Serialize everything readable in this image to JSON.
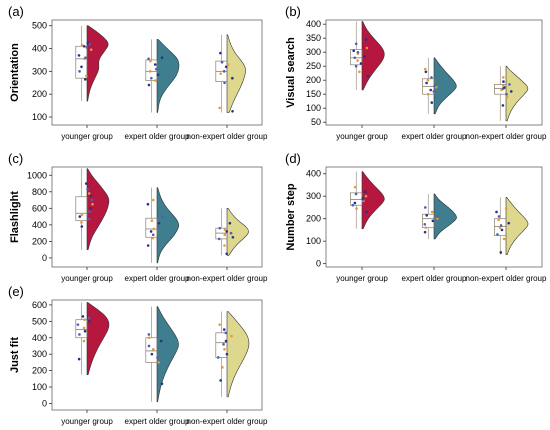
{
  "figure": {
    "background": "#ffffff"
  },
  "colors": {
    "younger group": "#b5173e",
    "expert older group": "#3f7e8e",
    "non-expert older group": "#ddd88e",
    "box_stroke": "#8a7e6e",
    "point_colors": [
      "#2a2f8a",
      "#e39a3b",
      "#4d5fb5"
    ]
  },
  "chart_data": [
    {
      "type": "box-violin",
      "panel_label": "(a)",
      "title": "",
      "xlabel": "",
      "ylabel": "Orientation",
      "categories": [
        "younger group",
        "expert older group",
        "non-expert older group"
      ],
      "yticks": [
        100,
        200,
        300,
        400,
        500
      ],
      "ylim": [
        65,
        525
      ],
      "groups": [
        {
          "name": "younger group",
          "q1": 270,
          "median": 355,
          "q3": 410,
          "whisker_low": 170,
          "whisker_high": 500,
          "density": [
            [
              170,
              0.03
            ],
            [
              220,
              0.12
            ],
            [
              270,
              0.35
            ],
            [
              310,
              0.55
            ],
            [
              350,
              0.5
            ],
            [
              390,
              0.8
            ],
            [
              420,
              1.0
            ],
            [
              450,
              0.75
            ],
            [
              480,
              0.35
            ],
            [
              500,
              0.05
            ]
          ],
          "points": [
            265,
            280,
            300,
            320,
            355,
            360,
            370,
            395,
            405,
            410,
            415,
            420,
            425
          ]
        },
        {
          "name": "expert older group",
          "q1": 260,
          "median": 300,
          "q3": 350,
          "whisker_low": 120,
          "whisker_high": 440,
          "density": [
            [
              120,
              0.03
            ],
            [
              180,
              0.12
            ],
            [
              230,
              0.45
            ],
            [
              270,
              0.8
            ],
            [
              300,
              0.95
            ],
            [
              330,
              1.0
            ],
            [
              360,
              0.9
            ],
            [
              400,
              0.45
            ],
            [
              440,
              0.05
            ]
          ],
          "points": [
            240,
            260,
            270,
            285,
            300,
            310,
            330,
            345,
            355,
            360
          ]
        },
        {
          "name": "non-expert older group",
          "q1": 255,
          "median": 300,
          "q3": 345,
          "whisker_low": 120,
          "whisker_high": 460,
          "density": [
            [
              120,
              0.1
            ],
            [
              160,
              0.25
            ],
            [
              200,
              0.45
            ],
            [
              240,
              0.65
            ],
            [
              280,
              0.8
            ],
            [
              310,
              0.85
            ],
            [
              340,
              0.7
            ],
            [
              380,
              0.35
            ],
            [
              420,
              0.15
            ],
            [
              460,
              0.03
            ]
          ],
          "points": [
            125,
            140,
            250,
            270,
            290,
            300,
            320,
            330,
            340,
            380
          ]
        }
      ]
    },
    {
      "type": "box-violin",
      "panel_label": "(b)",
      "title": "",
      "xlabel": "",
      "ylabel": "Visual search",
      "categories": [
        "younger group",
        "expert older group",
        "non-expert older group"
      ],
      "yticks": [
        50,
        100,
        150,
        200,
        250,
        300,
        350,
        400
      ],
      "ylim": [
        40,
        415
      ],
      "groups": [
        {
          "name": "younger group",
          "q1": 255,
          "median": 280,
          "q3": 310,
          "whisker_low": 165,
          "whisker_high": 410,
          "density": [
            [
              165,
              0.05
            ],
            [
              200,
              0.25
            ],
            [
              240,
              0.6
            ],
            [
              270,
              0.9
            ],
            [
              295,
              1.0
            ],
            [
              320,
              0.85
            ],
            [
              350,
              0.5
            ],
            [
              380,
              0.2
            ],
            [
              410,
              0.03
            ]
          ],
          "points": [
            215,
            230,
            250,
            260,
            270,
            280,
            285,
            295,
            300,
            305,
            315,
            330,
            345
          ]
        },
        {
          "name": "expert older group",
          "q1": 150,
          "median": 178,
          "q3": 205,
          "whisker_low": 80,
          "whisker_high": 280,
          "density": [
            [
              80,
              0.05
            ],
            [
              110,
              0.2
            ],
            [
              140,
              0.55
            ],
            [
              165,
              0.9
            ],
            [
              180,
              1.0
            ],
            [
              200,
              0.85
            ],
            [
              230,
              0.5
            ],
            [
              260,
              0.2
            ],
            [
              280,
              0.03
            ]
          ],
          "points": [
            120,
            150,
            160,
            165,
            175,
            180,
            190,
            200,
            210,
            230,
            240
          ]
        },
        {
          "name": "non-expert older group",
          "q1": 150,
          "median": 170,
          "q3": 185,
          "whisker_low": 55,
          "whisker_high": 250,
          "density": [
            [
              55,
              0.05
            ],
            [
              90,
              0.2
            ],
            [
              120,
              0.45
            ],
            [
              150,
              0.8
            ],
            [
              170,
              1.0
            ],
            [
              190,
              0.8
            ],
            [
              215,
              0.45
            ],
            [
              240,
              0.12
            ],
            [
              250,
              0.03
            ]
          ],
          "points": [
            110,
            140,
            150,
            160,
            165,
            170,
            175,
            180,
            185,
            195,
            210
          ]
        }
      ]
    },
    {
      "type": "box-violin",
      "panel_label": "(c)",
      "title": "",
      "xlabel": "",
      "ylabel": "Flashlight",
      "categories": [
        "younger group",
        "expert older group",
        "non-expert older group"
      ],
      "yticks": [
        0,
        200,
        400,
        600,
        800,
        1000
      ],
      "ylim": [
        -110,
        1100
      ],
      "groups": [
        {
          "name": "younger group",
          "q1": 450,
          "median": 540,
          "q3": 740,
          "whisker_low": 100,
          "whisker_high": 1080,
          "density": [
            [
              100,
              0.05
            ],
            [
              250,
              0.2
            ],
            [
              400,
              0.55
            ],
            [
              520,
              0.8
            ],
            [
              620,
              0.95
            ],
            [
              720,
              1.0
            ],
            [
              820,
              0.75
            ],
            [
              920,
              0.45
            ],
            [
              1000,
              0.2
            ],
            [
              1080,
              0.03
            ]
          ],
          "points": [
            380,
            430,
            470,
            500,
            520,
            560,
            600,
            650,
            700,
            750,
            780,
            830,
            900
          ]
        },
        {
          "name": "expert older group",
          "q1": 250,
          "median": 350,
          "q3": 480,
          "whisker_low": -60,
          "whisker_high": 850,
          "density": [
            [
              -60,
              0.03
            ],
            [
              50,
              0.12
            ],
            [
              150,
              0.35
            ],
            [
              250,
              0.7
            ],
            [
              330,
              0.9
            ],
            [
              400,
              1.0
            ],
            [
              480,
              0.85
            ],
            [
              580,
              0.5
            ],
            [
              700,
              0.2
            ],
            [
              850,
              0.03
            ]
          ],
          "points": [
            150,
            240,
            280,
            320,
            350,
            380,
            420,
            450,
            500,
            650,
            700
          ]
        },
        {
          "name": "non-expert older group",
          "q1": 230,
          "median": 300,
          "q3": 360,
          "whisker_low": 30,
          "whisker_high": 600,
          "density": [
            [
              30,
              0.08
            ],
            [
              100,
              0.25
            ],
            [
              180,
              0.5
            ],
            [
              260,
              0.85
            ],
            [
              320,
              1.0
            ],
            [
              380,
              0.85
            ],
            [
              450,
              0.5
            ],
            [
              520,
              0.25
            ],
            [
              600,
              0.05
            ]
          ],
          "points": [
            50,
            150,
            230,
            250,
            280,
            300,
            320,
            340,
            360,
            420
          ]
        }
      ]
    },
    {
      "type": "box-violin",
      "panel_label": "(d)",
      "title": "",
      "xlabel": "",
      "ylabel": "Number step",
      "categories": [
        "younger group",
        "expert older group",
        "non-expert older group"
      ],
      "yticks": [
        0,
        100,
        200,
        300,
        400
      ],
      "ylim": [
        -15,
        430
      ],
      "groups": [
        {
          "name": "younger group",
          "q1": 260,
          "median": 285,
          "q3": 315,
          "whisker_low": 155,
          "whisker_high": 410,
          "density": [
            [
              155,
              0.05
            ],
            [
              200,
              0.25
            ],
            [
              240,
              0.6
            ],
            [
              270,
              0.9
            ],
            [
              290,
              1.0
            ],
            [
              315,
              0.85
            ],
            [
              350,
              0.5
            ],
            [
              385,
              0.2
            ],
            [
              410,
              0.03
            ]
          ],
          "points": [
            230,
            245,
            260,
            270,
            280,
            285,
            290,
            300,
            310,
            320,
            340
          ]
        },
        {
          "name": "expert older group",
          "q1": 160,
          "median": 200,
          "q3": 220,
          "whisker_low": 110,
          "whisker_high": 310,
          "density": [
            [
              110,
              0.05
            ],
            [
              140,
              0.25
            ],
            [
              170,
              0.65
            ],
            [
              195,
              0.95
            ],
            [
              210,
              1.0
            ],
            [
              235,
              0.8
            ],
            [
              260,
              0.5
            ],
            [
              285,
              0.2
            ],
            [
              310,
              0.03
            ]
          ],
          "points": [
            140,
            160,
            175,
            190,
            200,
            210,
            215,
            230,
            250
          ]
        },
        {
          "name": "non-expert older group",
          "q1": 125,
          "median": 165,
          "q3": 200,
          "whisker_low": 40,
          "whisker_high": 295,
          "density": [
            [
              40,
              0.05
            ],
            [
              80,
              0.2
            ],
            [
              120,
              0.5
            ],
            [
              150,
              0.8
            ],
            [
              175,
              1.0
            ],
            [
              200,
              0.85
            ],
            [
              230,
              0.55
            ],
            [
              265,
              0.25
            ],
            [
              295,
              0.03
            ]
          ],
          "points": [
            50,
            110,
            130,
            150,
            160,
            170,
            180,
            195,
            210,
            230,
            245
          ]
        }
      ]
    },
    {
      "type": "box-violin",
      "panel_label": "(e)",
      "title": "",
      "xlabel": "",
      "ylabel": "Just fit",
      "categories": [
        "younger group",
        "expert older group",
        "non-expert older group"
      ],
      "yticks": [
        0,
        100,
        200,
        300,
        400,
        500,
        600
      ],
      "ylim": [
        -40,
        630
      ],
      "groups": [
        {
          "name": "younger group",
          "q1": 400,
          "median": 450,
          "q3": 510,
          "whisker_low": 175,
          "whisker_high": 615,
          "density": [
            [
              175,
              0.05
            ],
            [
              250,
              0.2
            ],
            [
              330,
              0.45
            ],
            [
              400,
              0.75
            ],
            [
              450,
              0.95
            ],
            [
              490,
              1.0
            ],
            [
              530,
              0.85
            ],
            [
              570,
              0.5
            ],
            [
              615,
              0.03
            ]
          ],
          "points": [
            270,
            380,
            420,
            440,
            460,
            480,
            500,
            510,
            520,
            530
          ]
        },
        {
          "name": "expert older group",
          "q1": 250,
          "median": 320,
          "q3": 400,
          "whisker_low": 10,
          "whisker_high": 590,
          "density": [
            [
              10,
              0.03
            ],
            [
              100,
              0.15
            ],
            [
              180,
              0.35
            ],
            [
              250,
              0.6
            ],
            [
              310,
              0.85
            ],
            [
              360,
              1.0
            ],
            [
              410,
              0.85
            ],
            [
              470,
              0.55
            ],
            [
              530,
              0.25
            ],
            [
              590,
              0.03
            ]
          ],
          "points": [
            120,
            250,
            280,
            300,
            330,
            350,
            380,
            400,
            420
          ]
        },
        {
          "name": "non-expert older group",
          "q1": 280,
          "median": 370,
          "q3": 430,
          "whisker_low": 40,
          "whisker_high": 560,
          "density": [
            [
              40,
              0.05
            ],
            [
              120,
              0.2
            ],
            [
              200,
              0.45
            ],
            [
              270,
              0.75
            ],
            [
              330,
              0.95
            ],
            [
              380,
              1.0
            ],
            [
              430,
              0.85
            ],
            [
              490,
              0.5
            ],
            [
              560,
              0.05
            ]
          ],
          "points": [
            140,
            220,
            280,
            300,
            330,
            360,
            380,
            410,
            430,
            450,
            480
          ]
        }
      ]
    }
  ]
}
